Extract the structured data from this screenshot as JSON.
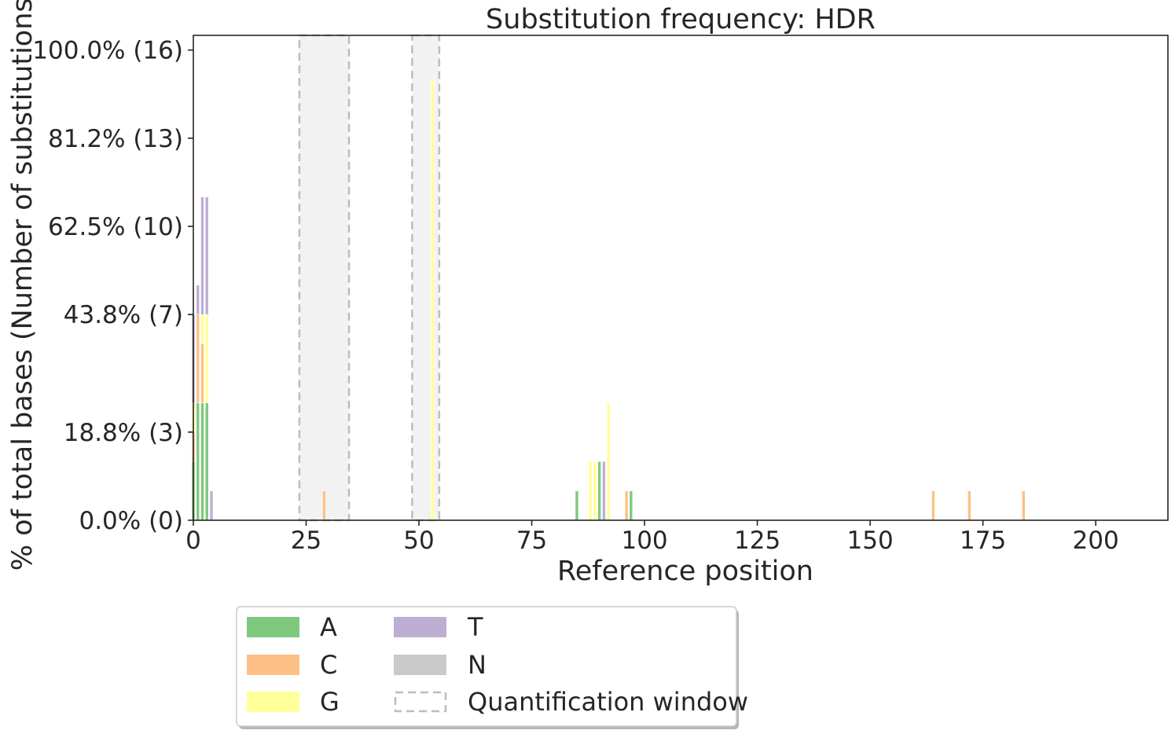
{
  "chart_data": {
    "type": "bar",
    "stacked": true,
    "title": "Substitution frequency: HDR",
    "xlabel": "Reference position",
    "ylabel": "% of total bases (Number of substitutions)",
    "xlim": [
      0,
      216
    ],
    "ylim": [
      0,
      16.5
    ],
    "xticks": [
      0,
      25,
      50,
      75,
      100,
      125,
      150,
      175,
      200
    ],
    "yticks": [
      {
        "value": 0,
        "label": "0.0% (0)"
      },
      {
        "value": 3,
        "label": "18.8% (3)"
      },
      {
        "value": 7,
        "label": "43.8% (7)"
      },
      {
        "value": 10,
        "label": "62.5% (10)"
      },
      {
        "value": 13,
        "label": "81.2% (13)"
      },
      {
        "value": 16,
        "label": "100.0% (16)"
      }
    ],
    "grid": false,
    "legend_position": "below",
    "quantification_windows": [
      [
        23.5,
        34.5
      ],
      [
        48.5,
        54.5
      ]
    ],
    "series": [
      {
        "name": "A",
        "color": "#7fc97f",
        "points": [
          [
            0,
            2
          ],
          [
            1,
            4
          ],
          [
            2,
            4
          ],
          [
            3,
            4
          ],
          [
            85,
            1
          ],
          [
            90,
            2
          ],
          [
            97,
            1
          ]
        ]
      },
      {
        "name": "C",
        "color": "#fdc086",
        "points": [
          [
            0,
            1
          ],
          [
            1,
            3
          ],
          [
            2,
            2
          ],
          [
            29,
            1
          ],
          [
            96,
            1
          ],
          [
            164,
            1
          ],
          [
            172,
            1
          ],
          [
            184,
            1
          ]
        ]
      },
      {
        "name": "G",
        "color": "#ffff99",
        "points": [
          [
            0,
            1
          ],
          [
            2,
            1
          ],
          [
            3,
            3
          ],
          [
            53,
            15
          ],
          [
            88,
            2
          ],
          [
            89,
            2
          ],
          [
            92,
            4
          ]
        ]
      },
      {
        "name": "T",
        "color": "#beaed4",
        "points": [
          [
            0,
            3
          ],
          [
            1,
            1
          ],
          [
            2,
            4
          ],
          [
            3,
            4
          ],
          [
            4,
            1
          ],
          [
            91,
            2
          ]
        ]
      },
      {
        "name": "N",
        "color": "#c9c9c9",
        "points": []
      }
    ],
    "legend": [
      {
        "name": "A",
        "color": "#7fc97f"
      },
      {
        "name": "C",
        "color": "#fdc086"
      },
      {
        "name": "G",
        "color": "#ffff99"
      },
      {
        "name": "T",
        "color": "#beaed4"
      },
      {
        "name": "N",
        "color": "#c9c9c9"
      },
      {
        "name": "Quantification window",
        "color": "#bdbdbd"
      }
    ],
    "window_fill_color": "#f2f2f2"
  }
}
